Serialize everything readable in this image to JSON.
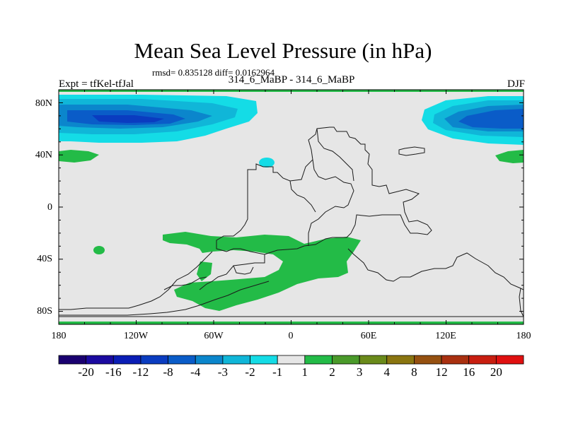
{
  "header": {
    "title": "Mean Sea Level Pressure (in hPa)",
    "stats": "rmsd= 0.835128 diff= 0.0162964",
    "subtitle": "314_6_MaBP - 314_6_MaBP",
    "experiment": "Expt = tfKel-tfJal",
    "season": "DJF"
  },
  "axes": {
    "lat_labels": [
      "80N",
      "40N",
      "0",
      "40S",
      "80S"
    ],
    "lon_labels": [
      "180",
      "120W",
      "60W",
      "0",
      "60E",
      "120E",
      "180"
    ]
  },
  "colorbar": {
    "labels": [
      "-20",
      "-16",
      "-12",
      "-8",
      "-4",
      "-3",
      "-2",
      "-1",
      "1",
      "2",
      "3",
      "4",
      "8",
      "12",
      "16",
      "20"
    ],
    "colors": [
      "#1a0070",
      "#1b0aa0",
      "#0a1db5",
      "#0a3cc0",
      "#0a5cc8",
      "#0b86cc",
      "#10b6d8",
      "#14dce6",
      "#e6e6e6",
      "#23bb47",
      "#4a9a2a",
      "#6a8a1a",
      "#8a7510",
      "#955010",
      "#a93010",
      "#c81e10",
      "#e01010"
    ]
  },
  "map": {
    "background_color": "#e6e6e6",
    "positive_color": "#23bb47",
    "negative_colors": [
      "#14dce6",
      "#10b6d8",
      "#0b86cc",
      "#0a5cc8",
      "#0a3cc0"
    ]
  }
}
